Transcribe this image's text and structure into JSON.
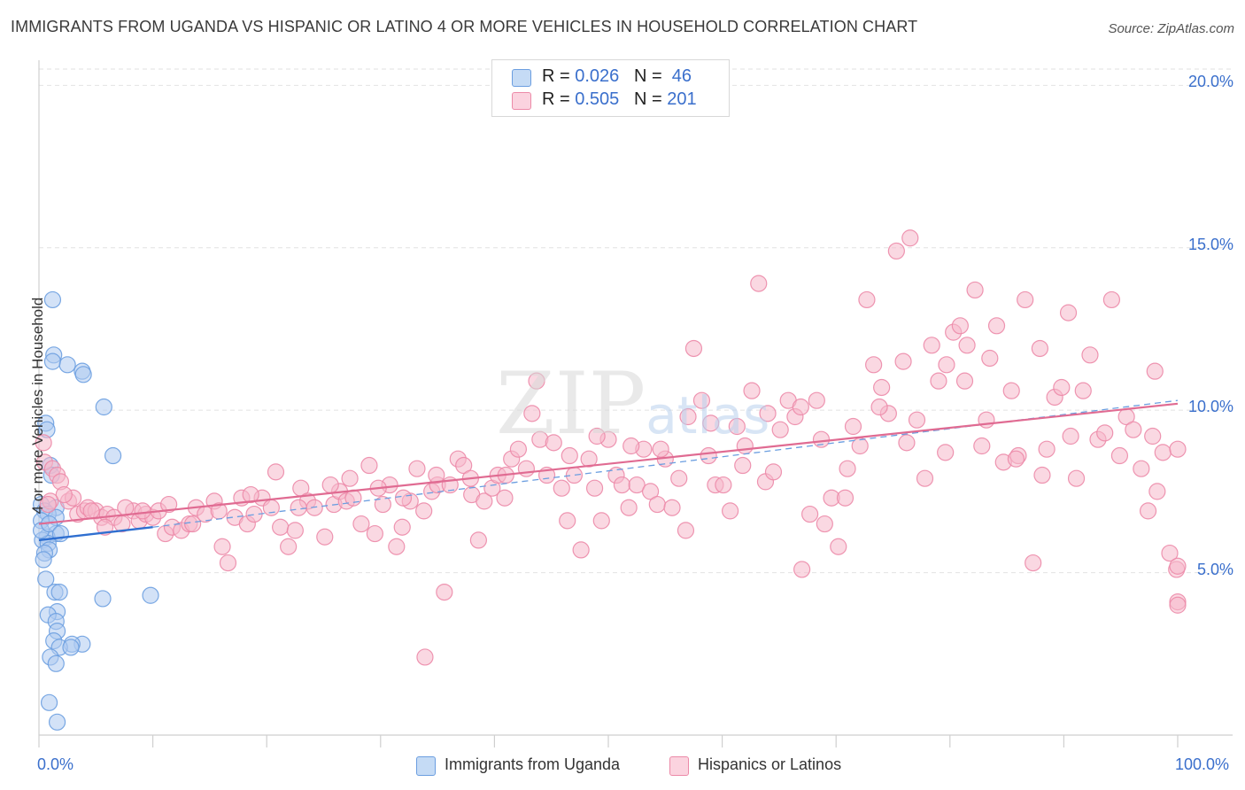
{
  "title": "IMMIGRANTS FROM UGANDA VS HISPANIC OR LATINO 4 OR MORE VEHICLES IN HOUSEHOLD CORRELATION CHART",
  "source": "Source: ZipAtlas.com",
  "watermark": {
    "zip": "ZIP",
    "atlas": "atlas"
  },
  "legend": {
    "rows": [
      {
        "r_label": "R = ",
        "r_value": "0.026",
        "n_label": "N = ",
        "n_value": " 46",
        "color": "#aecbf0"
      },
      {
        "r_label": "R = ",
        "r_value": "0.505",
        "n_label": "N = ",
        "n_value": "201",
        "color": "#f6b8cb"
      }
    ]
  },
  "bottom_legend": [
    {
      "label": "Immigrants from Uganda",
      "color": "#aecbf0"
    },
    {
      "label": "Hispanics or Latinos",
      "color": "#f6b8cb"
    }
  ],
  "chart_data": {
    "type": "scatter",
    "title": "IMMIGRANTS FROM UGANDA VS HISPANIC OR LATINO 4 OR MORE VEHICLES IN HOUSEHOLD CORRELATION CHART",
    "xlabel": "",
    "ylabel": "4 or more Vehicles in Household",
    "xlim": [
      0,
      100
    ],
    "ylim": [
      0,
      20.5
    ],
    "x_tick_labels": [
      "0.0%",
      "100.0%"
    ],
    "y_ticks": [
      5,
      10,
      15,
      20
    ],
    "y_tick_labels": [
      "5.0%",
      "10.0%",
      "15.0%",
      "20.0%"
    ],
    "grid": "horizontal dashed",
    "legend_position": "top-center",
    "series": [
      {
        "name": "Immigrants from Uganda",
        "color": "#6b9ee0",
        "fill": "#aecbf0",
        "trend": {
          "x": [
            0,
            10
          ],
          "y": [
            6.0,
            6.4
          ],
          "color": "#2f6fd0"
        },
        "trend_dashed": {
          "x": [
            10,
            100
          ],
          "y": [
            6.4,
            10.3
          ],
          "color": "#6b9ee0"
        },
        "points": [
          [
            1.2,
            13.4
          ],
          [
            1.3,
            11.7
          ],
          [
            1.2,
            11.5
          ],
          [
            2.5,
            11.4
          ],
          [
            3.8,
            11.2
          ],
          [
            3.9,
            11.1
          ],
          [
            5.7,
            10.1
          ],
          [
            0.6,
            9.6
          ],
          [
            0.7,
            9.4
          ],
          [
            6.5,
            8.6
          ],
          [
            1.0,
            8.3
          ],
          [
            1.1,
            8.0
          ],
          [
            0.2,
            7.1
          ],
          [
            1.5,
            7.0
          ],
          [
            0.5,
            6.9
          ],
          [
            0.8,
            6.8
          ],
          [
            1.5,
            6.7
          ],
          [
            0.2,
            6.6
          ],
          [
            1.5,
            6.2
          ],
          [
            0.7,
            6.1
          ],
          [
            0.3,
            6.0
          ],
          [
            0.8,
            5.9
          ],
          [
            0.9,
            5.7
          ],
          [
            0.5,
            5.6
          ],
          [
            0.6,
            4.8
          ],
          [
            1.4,
            4.4
          ],
          [
            1.8,
            4.4
          ],
          [
            5.6,
            4.2
          ],
          [
            9.8,
            4.3
          ],
          [
            1.6,
            3.8
          ],
          [
            0.8,
            3.7
          ],
          [
            1.5,
            3.5
          ],
          [
            1.6,
            3.2
          ],
          [
            1.3,
            2.9
          ],
          [
            3.8,
            2.8
          ],
          [
            2.9,
            2.8
          ],
          [
            1.8,
            2.7
          ],
          [
            2.8,
            2.7
          ],
          [
            1.0,
            2.4
          ],
          [
            1.5,
            2.2
          ],
          [
            0.9,
            1.0
          ],
          [
            1.6,
            0.4
          ],
          [
            0.2,
            6.3
          ],
          [
            0.4,
            5.4
          ],
          [
            0.9,
            6.5
          ],
          [
            1.9,
            6.2
          ]
        ]
      },
      {
        "name": "Hispanics or Latinos",
        "color": "#ec8aa8",
        "fill": "#f6b8cb",
        "trend": {
          "x": [
            0,
            100
          ],
          "y": [
            6.5,
            10.2
          ],
          "color": "#e06b92"
        },
        "points": [
          [
            0.4,
            9.0
          ],
          [
            0.5,
            8.4
          ],
          [
            1.2,
            8.2
          ],
          [
            1.6,
            8.0
          ],
          [
            1.9,
            7.8
          ],
          [
            2.6,
            7.2
          ],
          [
            3.0,
            7.3
          ],
          [
            3.4,
            6.8
          ],
          [
            4.0,
            6.9
          ],
          [
            4.3,
            7.0
          ],
          [
            5.0,
            6.9
          ],
          [
            5.5,
            6.7
          ],
          [
            6.0,
            6.8
          ],
          [
            6.6,
            6.7
          ],
          [
            7.3,
            6.5
          ],
          [
            8.3,
            6.9
          ],
          [
            8.8,
            6.6
          ],
          [
            9.4,
            6.8
          ],
          [
            10.0,
            6.7
          ],
          [
            10.5,
            6.9
          ],
          [
            11.1,
            6.2
          ],
          [
            11.7,
            6.4
          ],
          [
            12.5,
            6.3
          ],
          [
            13.2,
            6.5
          ],
          [
            13.8,
            7.0
          ],
          [
            14.6,
            6.8
          ],
          [
            15.4,
            7.2
          ],
          [
            16.1,
            5.8
          ],
          [
            16.6,
            5.3
          ],
          [
            17.2,
            6.7
          ],
          [
            17.8,
            7.3
          ],
          [
            18.3,
            6.5
          ],
          [
            18.9,
            6.8
          ],
          [
            19.6,
            7.3
          ],
          [
            20.4,
            7.0
          ],
          [
            21.2,
            6.4
          ],
          [
            21.9,
            5.8
          ],
          [
            22.5,
            6.3
          ],
          [
            23.0,
            7.6
          ],
          [
            23.6,
            7.2
          ],
          [
            24.2,
            7.0
          ],
          [
            25.1,
            6.1
          ],
          [
            25.9,
            7.1
          ],
          [
            26.4,
            7.5
          ],
          [
            27.0,
            7.2
          ],
          [
            27.6,
            7.3
          ],
          [
            28.3,
            6.5
          ],
          [
            29.0,
            8.3
          ],
          [
            29.5,
            6.2
          ],
          [
            30.2,
            7.1
          ],
          [
            30.8,
            7.7
          ],
          [
            31.4,
            5.8
          ],
          [
            31.9,
            6.4
          ],
          [
            32.6,
            7.2
          ],
          [
            33.2,
            8.2
          ],
          [
            33.8,
            6.9
          ],
          [
            34.5,
            7.5
          ],
          [
            35.0,
            7.7
          ],
          [
            35.6,
            4.4
          ],
          [
            36.1,
            7.7
          ],
          [
            36.8,
            8.5
          ],
          [
            37.3,
            8.3
          ],
          [
            38.0,
            7.4
          ],
          [
            38.6,
            6.0
          ],
          [
            39.1,
            7.2
          ],
          [
            39.8,
            7.6
          ],
          [
            40.3,
            8.0
          ],
          [
            40.9,
            7.3
          ],
          [
            41.5,
            8.5
          ],
          [
            42.1,
            8.8
          ],
          [
            42.8,
            8.2
          ],
          [
            43.3,
            9.9
          ],
          [
            44.0,
            9.1
          ],
          [
            44.6,
            8.0
          ],
          [
            45.2,
            9.0
          ],
          [
            45.9,
            7.6
          ],
          [
            46.4,
            6.6
          ],
          [
            47.0,
            8.0
          ],
          [
            47.6,
            5.7
          ],
          [
            48.3,
            8.5
          ],
          [
            48.8,
            7.6
          ],
          [
            49.4,
            6.6
          ],
          [
            50.0,
            9.1
          ],
          [
            50.7,
            8.0
          ],
          [
            51.2,
            7.7
          ],
          [
            51.8,
            7.0
          ],
          [
            52.5,
            7.7
          ],
          [
            53.1,
            8.8
          ],
          [
            53.7,
            7.5
          ],
          [
            54.3,
            7.1
          ],
          [
            55.0,
            8.5
          ],
          [
            55.6,
            7.0
          ],
          [
            56.2,
            7.9
          ],
          [
            56.8,
            6.3
          ],
          [
            57.5,
            11.9
          ],
          [
            58.2,
            10.3
          ],
          [
            58.8,
            8.6
          ],
          [
            59.4,
            7.7
          ],
          [
            60.1,
            7.7
          ],
          [
            60.7,
            6.9
          ],
          [
            61.3,
            9.5
          ],
          [
            62.0,
            8.9
          ],
          [
            62.6,
            10.6
          ],
          [
            63.2,
            13.9
          ],
          [
            63.8,
            7.8
          ],
          [
            64.5,
            8.1
          ],
          [
            65.1,
            9.4
          ],
          [
            65.8,
            10.3
          ],
          [
            66.4,
            9.8
          ],
          [
            67.0,
            5.1
          ],
          [
            67.7,
            6.8
          ],
          [
            68.3,
            10.3
          ],
          [
            69.0,
            6.5
          ],
          [
            69.6,
            7.3
          ],
          [
            70.2,
            5.8
          ],
          [
            70.8,
            7.3
          ],
          [
            71.5,
            9.5
          ],
          [
            72.1,
            8.9
          ],
          [
            72.7,
            13.4
          ],
          [
            73.3,
            11.4
          ],
          [
            74.0,
            10.7
          ],
          [
            74.6,
            9.9
          ],
          [
            75.3,
            14.9
          ],
          [
            75.9,
            11.5
          ],
          [
            76.5,
            15.3
          ],
          [
            77.1,
            9.7
          ],
          [
            77.8,
            7.9
          ],
          [
            78.4,
            12.0
          ],
          [
            79.0,
            10.9
          ],
          [
            79.7,
            11.4
          ],
          [
            80.3,
            12.4
          ],
          [
            80.9,
            12.6
          ],
          [
            81.5,
            12.0
          ],
          [
            82.2,
            13.7
          ],
          [
            82.8,
            8.9
          ],
          [
            83.5,
            11.6
          ],
          [
            84.1,
            12.6
          ],
          [
            84.7,
            8.4
          ],
          [
            85.4,
            10.6
          ],
          [
            86.0,
            8.6
          ],
          [
            86.6,
            13.4
          ],
          [
            87.3,
            5.3
          ],
          [
            87.9,
            11.9
          ],
          [
            88.5,
            8.8
          ],
          [
            89.2,
            10.4
          ],
          [
            89.8,
            10.7
          ],
          [
            90.4,
            13.0
          ],
          [
            91.1,
            7.9
          ],
          [
            91.7,
            10.6
          ],
          [
            92.3,
            11.7
          ],
          [
            93.0,
            9.1
          ],
          [
            93.6,
            9.3
          ],
          [
            94.2,
            13.4
          ],
          [
            94.9,
            8.6
          ],
          [
            95.5,
            9.8
          ],
          [
            96.1,
            9.4
          ],
          [
            96.8,
            8.2
          ],
          [
            97.4,
            6.9
          ],
          [
            98.0,
            11.2
          ],
          [
            98.7,
            8.7
          ],
          [
            99.3,
            5.6
          ],
          [
            99.9,
            5.1
          ],
          [
            100.0,
            4.1
          ],
          [
            100.0,
            4.0
          ],
          [
            100.0,
            5.2
          ],
          [
            100.0,
            8.8
          ],
          [
            98.2,
            7.5
          ],
          [
            97.8,
            9.2
          ],
          [
            90.6,
            9.2
          ],
          [
            88.1,
            8.0
          ],
          [
            85.8,
            8.5
          ],
          [
            83.2,
            9.7
          ],
          [
            81.3,
            10.9
          ],
          [
            79.6,
            8.7
          ],
          [
            76.2,
            9.0
          ],
          [
            73.8,
            10.1
          ],
          [
            71.0,
            8.2
          ],
          [
            68.7,
            9.1
          ],
          [
            66.9,
            10.1
          ],
          [
            64.0,
            9.9
          ],
          [
            61.8,
            8.3
          ],
          [
            59.0,
            9.6
          ],
          [
            57.0,
            9.8
          ],
          [
            54.6,
            8.8
          ],
          [
            52.0,
            8.9
          ],
          [
            49.0,
            9.2
          ],
          [
            46.6,
            8.6
          ],
          [
            43.7,
            10.9
          ],
          [
            41.0,
            8.0
          ],
          [
            37.9,
            7.9
          ],
          [
            34.9,
            8.0
          ],
          [
            32.0,
            7.3
          ],
          [
            29.8,
            7.6
          ],
          [
            27.3,
            7.9
          ],
          [
            25.6,
            7.7
          ],
          [
            22.8,
            7.0
          ],
          [
            20.8,
            8.1
          ],
          [
            18.6,
            7.4
          ],
          [
            15.8,
            6.9
          ],
          [
            13.5,
            6.5
          ],
          [
            11.4,
            7.1
          ],
          [
            9.1,
            6.9
          ],
          [
            7.6,
            7.0
          ],
          [
            5.8,
            6.4
          ],
          [
            4.6,
            6.9
          ],
          [
            2.2,
            7.4
          ],
          [
            1.0,
            7.2
          ],
          [
            0.8,
            7.1
          ],
          [
            33.9,
            2.4
          ]
        ]
      }
    ]
  }
}
